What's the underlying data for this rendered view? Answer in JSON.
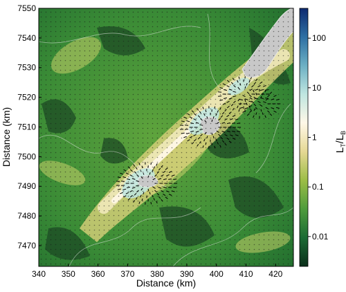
{
  "chart_data": {
    "type": "heatmap",
    "xlabel": "Distance (km)",
    "ylabel": "Distance (km)",
    "xlim": [
      340,
      426
    ],
    "ylim": [
      7463,
      7550
    ],
    "x_ticks": [
      "340",
      "350",
      "360",
      "370",
      "380",
      "390",
      "400",
      "410",
      "420"
    ],
    "y_ticks": [
      "7470",
      "7480",
      "7490",
      "7500",
      "7510",
      "7520",
      "7530",
      "7540",
      "7550"
    ],
    "x_tick_values": [
      340,
      350,
      360,
      370,
      380,
      390,
      400,
      410,
      420
    ],
    "y_tick_values": [
      7470,
      7480,
      7490,
      7500,
      7510,
      7520,
      7530,
      7540,
      7550
    ],
    "colorbar": {
      "label_main": "L",
      "label_sub_1": "T",
      "label_sep": "/L",
      "label_sub_2": "B",
      "scale": "log",
      "range": [
        0.0025,
        400
      ],
      "ticks": [
        "0.01",
        "0.1",
        "1",
        "10",
        "100"
      ],
      "tick_values": [
        0.01,
        0.1,
        1,
        10,
        100
      ],
      "colors": [
        "#0a2e1a",
        "#1b6b34",
        "#4e9c3c",
        "#9cbd46",
        "#e5d893",
        "#fff8e8",
        "#bfe6e0",
        "#6cb0c4",
        "#2e6fa3",
        "#0d2a70"
      ]
    },
    "features": {
      "ice_covered": "gray",
      "vectors": "ice flow arrows"
    }
  }
}
